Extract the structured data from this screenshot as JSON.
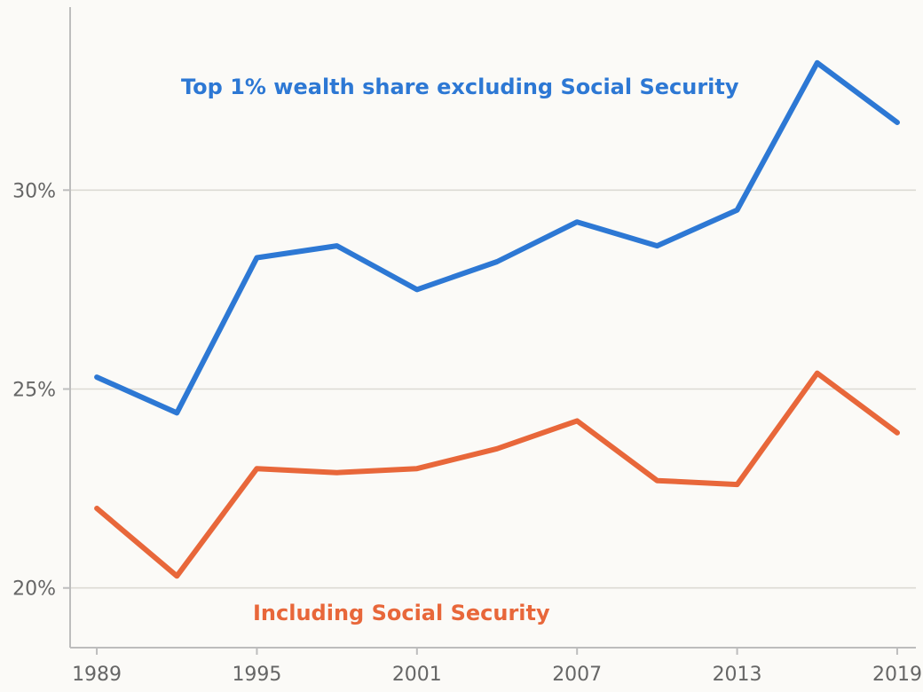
{
  "chart_data": {
    "type": "line",
    "title": "",
    "xlabel": "",
    "ylabel": "",
    "x": [
      1989,
      1992,
      1995,
      1998,
      2001,
      2004,
      2007,
      2010,
      2013,
      2016,
      2019
    ],
    "xticks": [
      1989,
      1995,
      2001,
      2007,
      2013,
      2019
    ],
    "xtick_labels": [
      "1989",
      "1995",
      "2001",
      "2007",
      "2013",
      "2019"
    ],
    "yticks": [
      20,
      25,
      30
    ],
    "ytick_labels": [
      "20%",
      "25%",
      "30%"
    ],
    "xlim": [
      1988,
      2019.7
    ],
    "ylim": [
      18.5,
      34.6
    ],
    "grid": "horizontal",
    "series": [
      {
        "name": "Top 1% wealth share excluding Social Security",
        "color": "#2d78d4",
        "values": [
          25.3,
          24.4,
          28.3,
          28.6,
          27.5,
          28.2,
          29.2,
          28.6,
          29.5,
          33.2,
          31.7
        ]
      },
      {
        "name": "Including Social Security",
        "color": "#e8673a",
        "values": [
          22.0,
          20.3,
          23.0,
          22.9,
          23.0,
          23.5,
          24.2,
          22.7,
          22.6,
          25.4,
          23.9
        ]
      }
    ]
  }
}
